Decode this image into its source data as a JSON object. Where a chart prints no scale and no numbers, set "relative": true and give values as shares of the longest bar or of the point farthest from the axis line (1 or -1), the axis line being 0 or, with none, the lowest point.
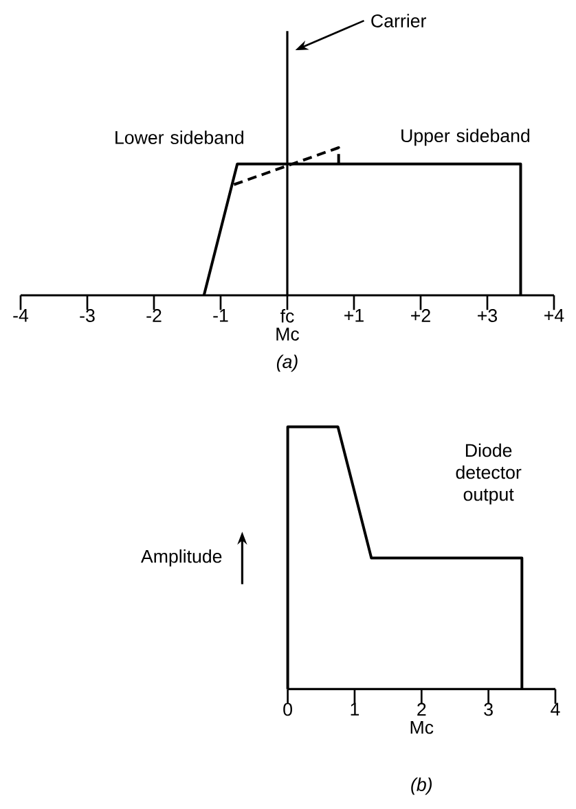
{
  "chart_data": [
    {
      "type": "line",
      "title": "(a)",
      "xlabel": "Mc",
      "relative": true,
      "marker": "none",
      "tick_labels": "x",
      "xlim": [
        -4,
        4
      ],
      "xticks": [
        -4,
        -3,
        -2,
        -1,
        {
          "value": 0,
          "label": "fc"
        },
        {
          "value": 1,
          "label": "+1"
        },
        {
          "value": 2,
          "label": "+2"
        },
        {
          "value": 3,
          "label": "+3"
        },
        {
          "value": 4,
          "label": "+4"
        }
      ],
      "series": [
        {
          "color": "#000000",
          "line_style": "solid",
          "x": [
            -1.25,
            -0.75,
            3.5,
            3.5
          ],
          "values": [
            0,
            0.89,
            0.89,
            0
          ]
        },
        {
          "color": "#000000",
          "line_style": "dashed",
          "x": [
            -0.8,
            0.77,
            0.77
          ],
          "values": [
            0.75,
            1,
            0.89
          ]
        }
      ],
      "ref_lines": [
        {
          "axis": "x",
          "value": 0,
          "label": "Carrier",
          "color": "#000000",
          "line_style": "solid"
        }
      ],
      "annotations": [
        "Lower sideband",
        "Upper sideband"
      ]
    },
    {
      "type": "line",
      "title": "(b)",
      "xlabel": "Mc",
      "ylabel": "Amplitude",
      "relative": true,
      "marker": "none",
      "tick_labels": "x",
      "xlim": [
        0,
        4
      ],
      "xticks": [
        0,
        1,
        2,
        3,
        4
      ],
      "series": [
        {
          "color": "#000000",
          "line_style": "solid",
          "x": [
            0,
            0,
            0.75,
            1.25,
            3.5,
            3.5
          ],
          "values": [
            0,
            1,
            1,
            0.5,
            0.5,
            0
          ]
        }
      ],
      "annotations": [
        "Diode detector output"
      ]
    }
  ]
}
